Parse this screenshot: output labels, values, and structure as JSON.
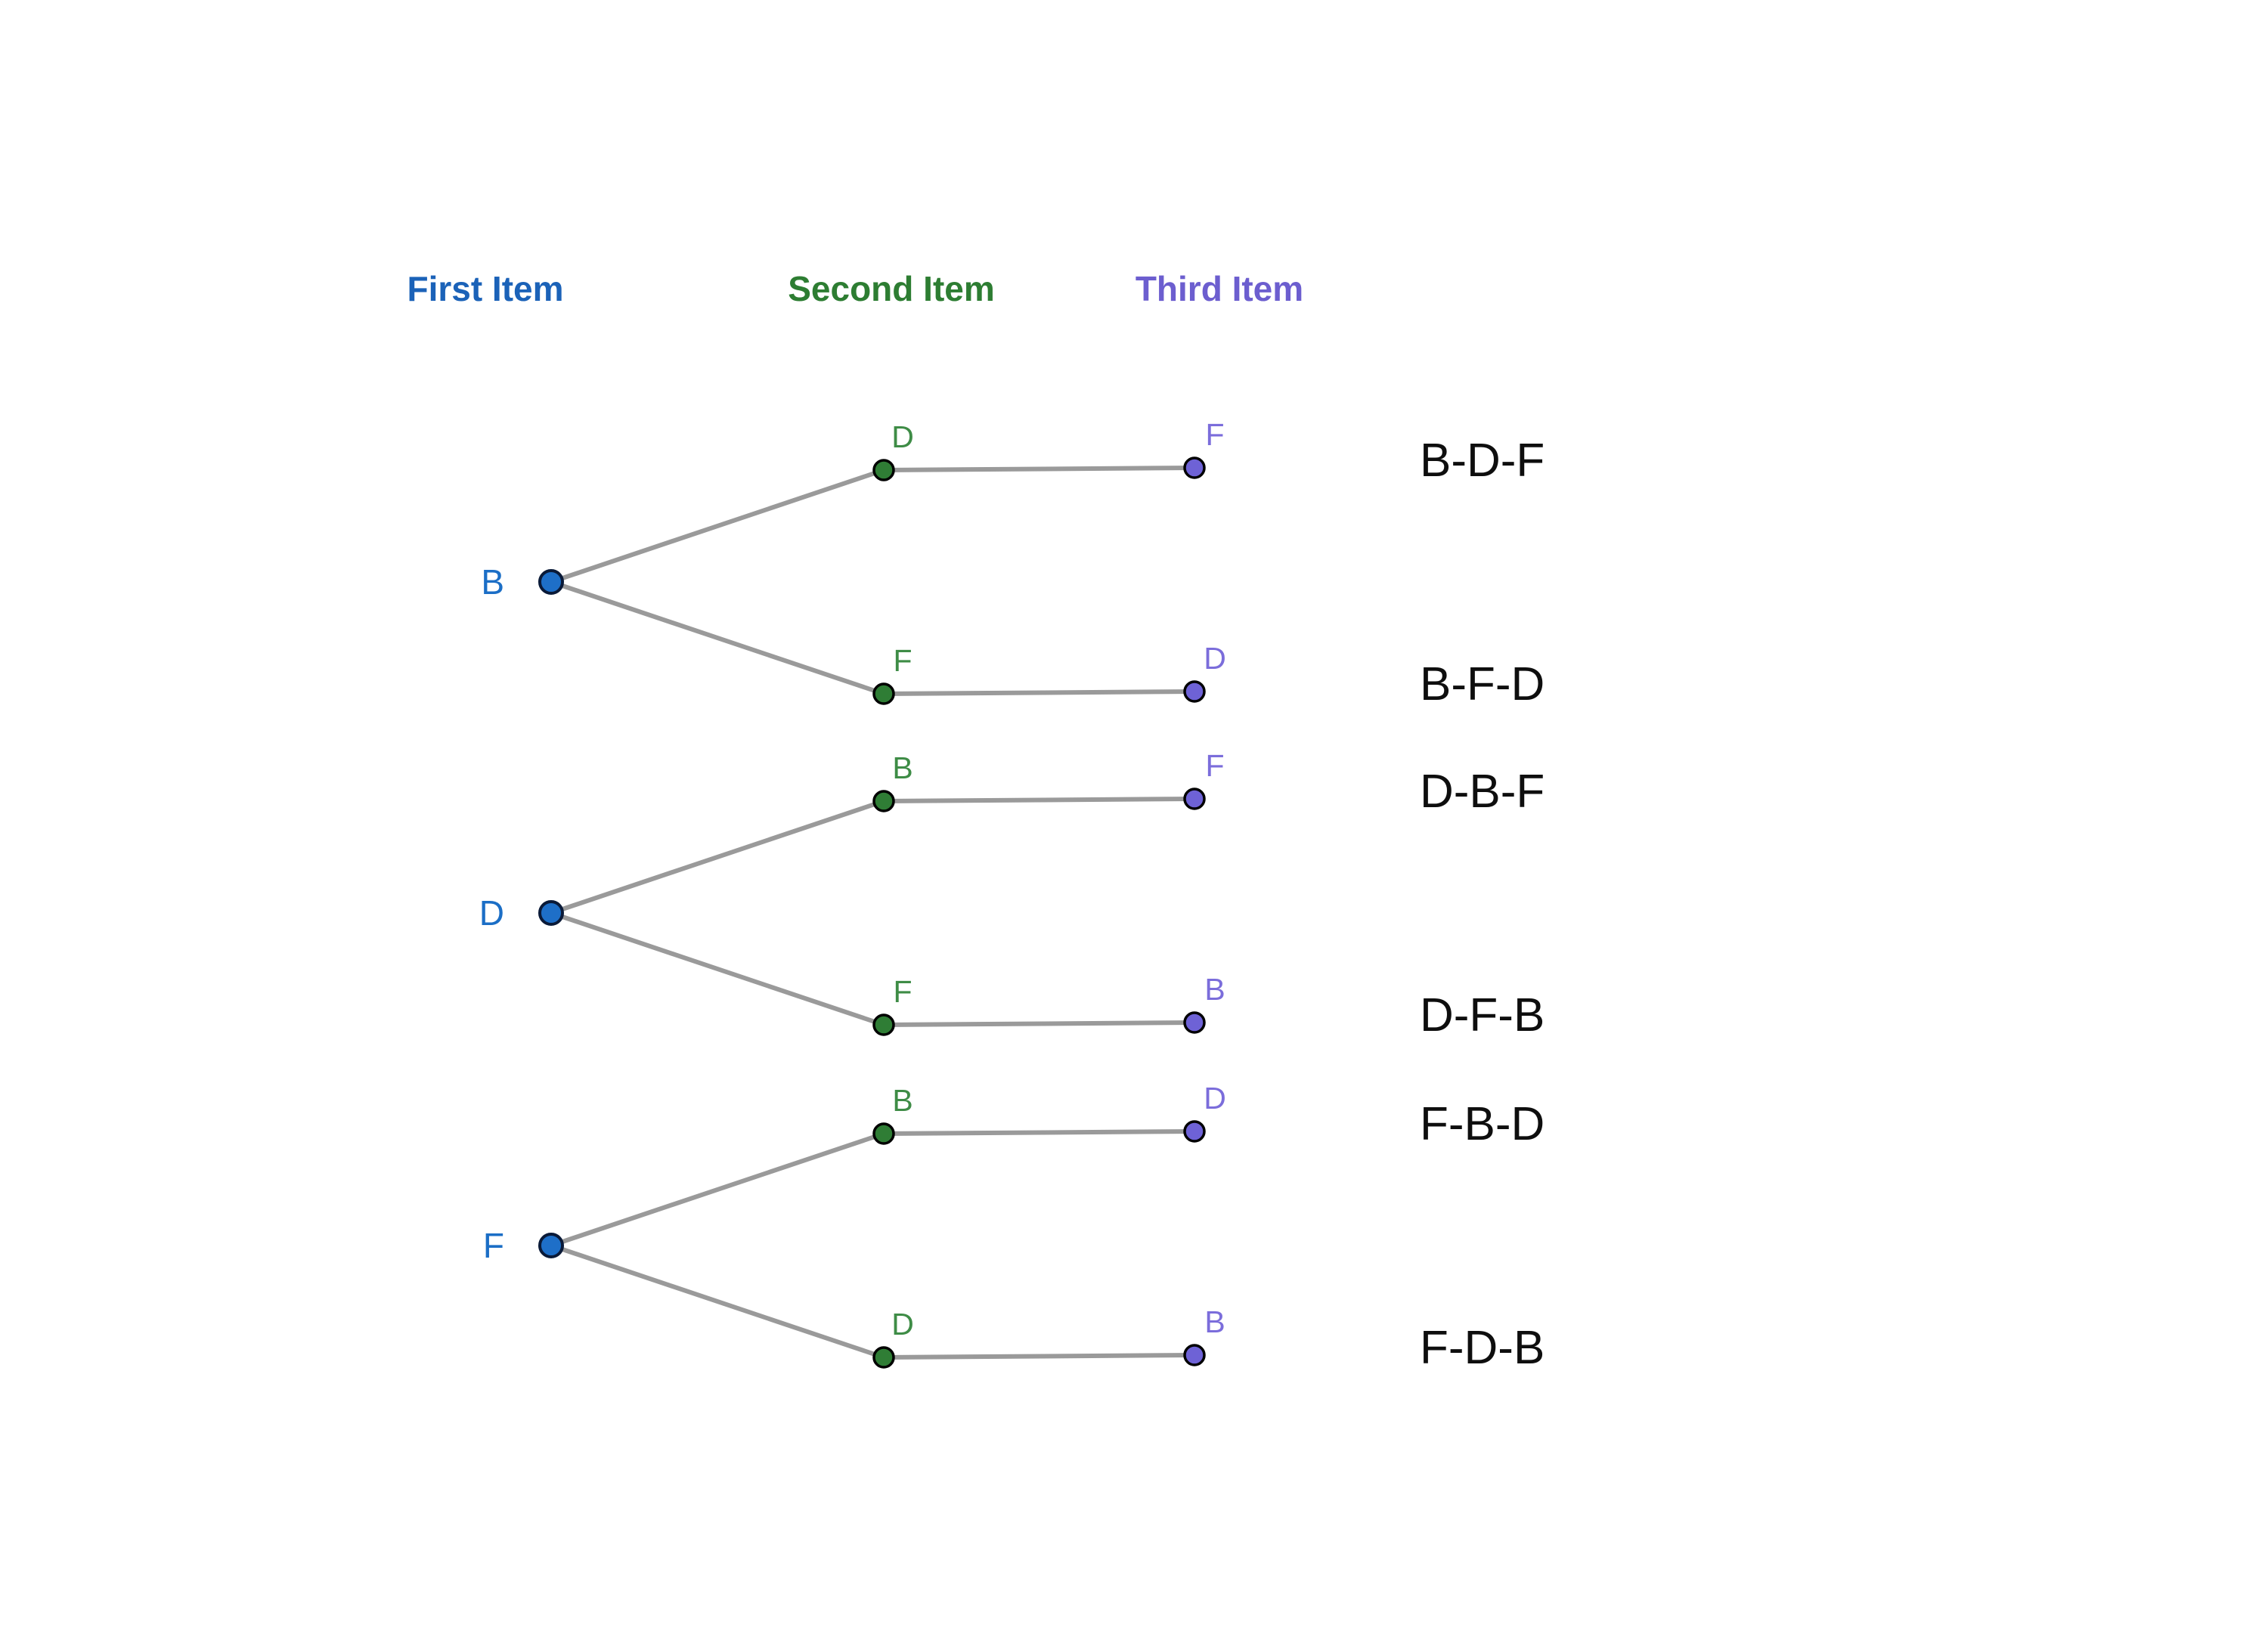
{
  "columns": [
    {
      "label": "First Item",
      "color": "#1b62b8"
    },
    {
      "label": "Second Item",
      "color": "#2d7d32"
    },
    {
      "label": "Third Item",
      "color": "#6c5ecf"
    }
  ],
  "palette": {
    "level1_fill": "#1e6fc8",
    "level1_stroke": "#0a1a38",
    "level1_text": "#1b6ec6",
    "level2_fill": "#2f7d35",
    "level2_text": "#3e8c46",
    "level3_fill": "#6e62d6",
    "level3_text": "#7b6ddb",
    "node_stroke": "#000000",
    "line": "#9a9a9a",
    "outcome_text": "#0e0e0e",
    "background": "#ffffff"
  },
  "tree": {
    "groups": [
      {
        "root": "B",
        "branches": [
          {
            "second": "D",
            "third": "F",
            "outcome": "B-D-F"
          },
          {
            "second": "F",
            "third": "D",
            "outcome": "B-F-D"
          }
        ]
      },
      {
        "root": "D",
        "branches": [
          {
            "second": "B",
            "third": "F",
            "outcome": "D-B-F"
          },
          {
            "second": "F",
            "third": "B",
            "outcome": "D-F-B"
          }
        ]
      },
      {
        "root": "F",
        "branches": [
          {
            "second": "B",
            "third": "D",
            "outcome": "F-B-D"
          },
          {
            "second": "D",
            "third": "B",
            "outcome": "F-D-B"
          }
        ]
      }
    ]
  }
}
